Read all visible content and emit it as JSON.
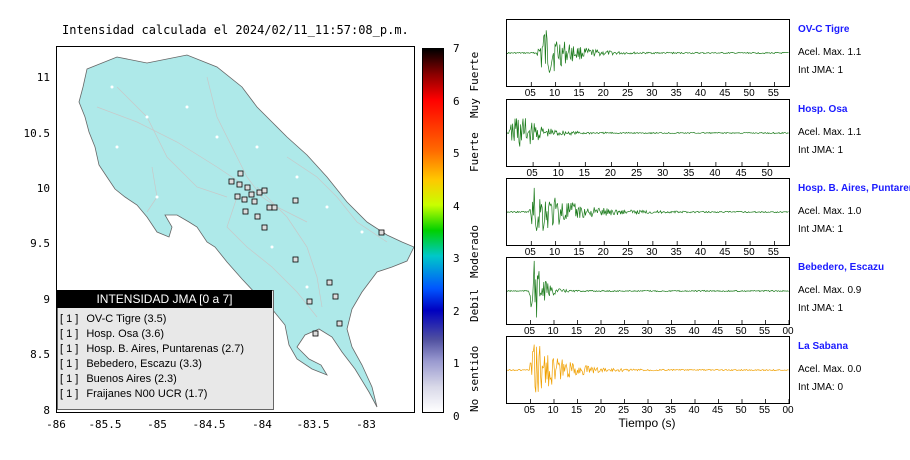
{
  "map": {
    "title": "Intensidad calculada el 2024/02/11_11:57:08_p.m.",
    "y_ticks": [
      "11",
      "10.5",
      "10",
      "9.5",
      "9",
      "8.5",
      "8"
    ],
    "x_ticks": [
      "-86",
      "-85.5",
      "-85",
      "-84.5",
      "-84",
      "-83.5",
      "-83"
    ],
    "legend": {
      "title": "INTENSIDAD JMA [0 a 7]",
      "items": [
        {
          "code": "[ 1 ]",
          "label": "OV-C Tigre (3.5)"
        },
        {
          "code": "[ 1 ]",
          "label": "Hosp. Osa (3.6)"
        },
        {
          "code": "[ 1 ]",
          "label": "Hosp. B. Aires, Puntarenas (2.7)"
        },
        {
          "code": "[ 1 ]",
          "label": "Bebedero, Escazu (3.3)"
        },
        {
          "code": "[ 1 ]",
          "label": "Buenos Aires (2.3)"
        },
        {
          "code": "[ 1 ]",
          "label": "Fraijanes N00 UCR (1.7)"
        }
      ]
    },
    "colors": {
      "land": "#aee9e9",
      "station_outline": "#000000"
    }
  },
  "colorbar": {
    "ticks": [
      "7",
      "6",
      "5",
      "4",
      "3",
      "2",
      "1",
      "0"
    ],
    "categories": [
      "Muy Fuerte",
      "Fuerte",
      "Moderado",
      "Debil",
      "No sentido"
    ]
  },
  "panels": [
    {
      "name": "OV-C Tigre",
      "acel": "Acel. Max. 1.1",
      "int": "Int JMA: 1",
      "color": "#1a7a1a",
      "xticks": [
        "05",
        "10",
        "15",
        "20",
        "25",
        "30",
        "35",
        "40",
        "45",
        "50",
        "55"
      ],
      "xmax": 58
    },
    {
      "name": "Hosp. Osa",
      "acel": "Acel. Max. 1.1",
      "int": "Int JMA: 1",
      "color": "#1a7a1a",
      "xticks": [
        "05",
        "10",
        "15",
        "20",
        "25",
        "30",
        "35",
        "40",
        "45",
        "50"
      ],
      "xmax": 54
    },
    {
      "name": "Hosp. B. Aires, Puntarenas",
      "acel": "Acel. Max. 1.0",
      "int": "Int JMA: 1",
      "color": "#1a7a1a",
      "xticks": [
        "05",
        "10",
        "15",
        "20",
        "25",
        "30",
        "35",
        "40",
        "45",
        "50",
        "55"
      ],
      "xmax": 58
    },
    {
      "name": "Bebedero, Escazu",
      "acel": "Acel. Max. 0.9",
      "int": "Int JMA: 1",
      "color": "#1a7a1a",
      "xticks": [
        "05",
        "10",
        "15",
        "20",
        "25",
        "30",
        "35",
        "40",
        "45",
        "50",
        "55",
        "00"
      ],
      "xmax": 60
    },
    {
      "name": "La Sabana",
      "acel": "Acel. Max. 0.0",
      "int": "Int JMA: 0",
      "color": "#f0a000",
      "xticks": [
        "05",
        "10",
        "15",
        "20",
        "25",
        "30",
        "35",
        "40",
        "45",
        "50",
        "55",
        "00"
      ],
      "xmax": 60
    }
  ],
  "xlabel": "Tiempo (s)",
  "chart_data": {
    "type": "line",
    "title": "Intensidad calculada el 2024/02/11_11:57:08_p.m.",
    "xlabel": "Tiempo (s)",
    "map_xlim": [
      -86,
      -82.6
    ],
    "map_ylim": [
      8,
      11.3
    ],
    "stations": [
      {
        "name": "OV-C Tigre",
        "intensity_jma": 1,
        "value": 3.5,
        "acel_max": 1.1
      },
      {
        "name": "Hosp. Osa",
        "intensity_jma": 1,
        "value": 3.6,
        "acel_max": 1.1
      },
      {
        "name": "Hosp. B. Aires, Puntarenas",
        "intensity_jma": 1,
        "value": 2.7,
        "acel_max": 1.0
      },
      {
        "name": "Bebedero, Escazu",
        "intensity_jma": 1,
        "value": 3.3,
        "acel_max": 0.9
      },
      {
        "name": "Buenos Aires",
        "intensity_jma": 1,
        "value": 2.3
      },
      {
        "name": "Fraijanes N00 UCR",
        "intensity_jma": 1,
        "value": 1.7
      },
      {
        "name": "La Sabana",
        "intensity_jma": 0,
        "acel_max": 0.0
      }
    ],
    "colorbar_range": [
      0,
      7
    ],
    "legend_position": "bottom-left"
  }
}
